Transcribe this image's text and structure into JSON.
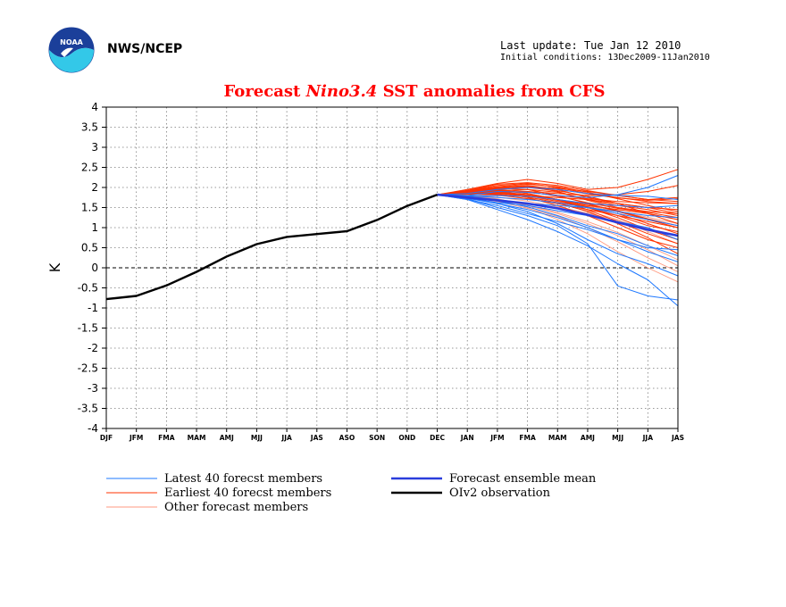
{
  "header": {
    "org": "NWS/NCEP",
    "last_update": "Last update: Tue Jan 12 2010",
    "initial_conditions": "Initial conditions: 13Dec2009-11Jan2010",
    "logo": "noaa-logo"
  },
  "chart_data": {
    "type": "line",
    "title_parts": [
      "Forecast ",
      "Nino3.4",
      " SST anomalies from CFS"
    ],
    "ylabel": "K",
    "ylim": [
      -4,
      4
    ],
    "yticks": [
      "4",
      "3.5",
      "3",
      "2.5",
      "2",
      "1.5",
      "1",
      "0.5",
      "0",
      "-0.5",
      "-1",
      "-1.5",
      "-2",
      "-2.5",
      "-3",
      "-3.5",
      "-4"
    ],
    "categories": [
      "DJF",
      "JFM",
      "FMA",
      "MAM",
      "AMJ",
      "MJJ",
      "JJA",
      "JAS",
      "ASO",
      "SON",
      "OND",
      "DEC",
      "JAN",
      "JFM",
      "FMA",
      "MAM",
      "AMJ",
      "MJJ",
      "JJA",
      "JAS"
    ],
    "grid": true,
    "colors": {
      "latest": "#1e78ff",
      "earliest": "#ff3300",
      "other": "#ff9a80",
      "mean": "#2a3ddc",
      "obs": "#000000"
    },
    "observation": {
      "name": "OIv2 observation",
      "values": [
        -0.78,
        -0.7,
        -0.44,
        -0.1,
        0.28,
        0.59,
        0.77,
        0.84,
        0.91,
        1.19,
        1.54,
        1.82
      ]
    },
    "ensemble_mean": {
      "name": "Forecast ensemble mean",
      "values": [
        1.82,
        1.75,
        1.68,
        1.6,
        1.48,
        1.32,
        1.13,
        0.95,
        0.8
      ]
    },
    "members": {
      "latest": [
        [
          1.82,
          1.7,
          1.45,
          1.2,
          0.9,
          0.55,
          0.1,
          -0.3,
          -0.95
        ],
        [
          1.82,
          1.8,
          1.9,
          1.88,
          1.8,
          1.75,
          1.82,
          2.0,
          2.3
        ],
        [
          1.82,
          1.75,
          1.6,
          1.4,
          1.1,
          0.7,
          0.35,
          0.1,
          -0.2
        ],
        [
          1.82,
          1.72,
          1.5,
          1.3,
          1.05,
          0.6,
          -0.45,
          -0.7,
          -0.8
        ],
        [
          1.82,
          1.85,
          1.95,
          2.0,
          1.95,
          1.85,
          1.8,
          1.78,
          1.7
        ],
        [
          1.82,
          1.78,
          1.7,
          1.6,
          1.55,
          1.5,
          1.4,
          1.3,
          1.25
        ],
        [
          1.82,
          1.74,
          1.62,
          1.55,
          1.42,
          1.3,
          1.15,
          1.0,
          0.7
        ],
        [
          1.82,
          1.76,
          1.66,
          1.52,
          1.3,
          1.05,
          0.85,
          0.55,
          0.3
        ],
        [
          1.82,
          1.7,
          1.55,
          1.35,
          1.15,
          0.95,
          0.7,
          0.4,
          0.15
        ],
        [
          1.82,
          1.8,
          1.75,
          1.7,
          1.62,
          1.5,
          1.35,
          1.2,
          1.05
        ],
        [
          1.82,
          1.73,
          1.6,
          1.45,
          1.25,
          1.0,
          0.7,
          0.5,
          0.45
        ],
        [
          1.82,
          1.79,
          1.8,
          1.78,
          1.7,
          1.6,
          1.55,
          1.5,
          1.55
        ]
      ],
      "earliest": [
        [
          1.82,
          1.95,
          2.1,
          2.2,
          2.1,
          1.95,
          2.0,
          2.2,
          2.45
        ],
        [
          1.82,
          1.9,
          2.0,
          2.05,
          1.95,
          1.75,
          1.6,
          1.5,
          1.35
        ],
        [
          1.82,
          1.88,
          1.95,
          1.85,
          1.7,
          1.55,
          1.45,
          1.35,
          1.2
        ],
        [
          1.82,
          1.85,
          1.9,
          1.8,
          1.65,
          1.5,
          1.3,
          1.05,
          0.9
        ],
        [
          1.82,
          1.87,
          1.92,
          1.95,
          1.88,
          1.7,
          1.55,
          1.45,
          1.3
        ],
        [
          1.82,
          1.9,
          1.98,
          1.95,
          1.8,
          1.6,
          1.4,
          1.2,
          1.0
        ],
        [
          1.82,
          1.83,
          1.85,
          1.8,
          1.75,
          1.7,
          1.6,
          1.5,
          1.45
        ],
        [
          1.82,
          1.92,
          2.05,
          2.1,
          2.0,
          1.85,
          1.75,
          1.65,
          1.6
        ],
        [
          1.82,
          1.86,
          1.88,
          1.75,
          1.55,
          1.3,
          1.0,
          0.7,
          0.5
        ],
        [
          1.82,
          1.84,
          1.87,
          1.9,
          1.85,
          1.8,
          1.82,
          1.9,
          2.05
        ],
        [
          1.82,
          1.89,
          1.93,
          1.85,
          1.7,
          1.45,
          1.15,
          0.85,
          0.6
        ],
        [
          1.82,
          1.91,
          2.0,
          2.02,
          1.9,
          1.68,
          1.5,
          1.4,
          1.35
        ],
        [
          1.82,
          1.85,
          1.82,
          1.72,
          1.6,
          1.45,
          1.3,
          1.15,
          1.0
        ],
        [
          1.82,
          1.88,
          1.96,
          2.0,
          1.98,
          1.9,
          1.8,
          1.7,
          1.75
        ],
        [
          1.82,
          1.86,
          1.9,
          1.82,
          1.68,
          1.52,
          1.35,
          1.1,
          0.85
        ],
        [
          1.82,
          1.93,
          2.08,
          2.12,
          2.05,
          1.92,
          1.8,
          1.7,
          1.65
        ],
        [
          1.82,
          1.84,
          1.83,
          1.76,
          1.62,
          1.4,
          1.1,
          0.75,
          0.35
        ],
        [
          1.82,
          1.9,
          1.95,
          1.9,
          1.78,
          1.62,
          1.48,
          1.38,
          1.25
        ],
        [
          1.82,
          1.87,
          1.92,
          1.88,
          1.8,
          1.72,
          1.65,
          1.62,
          1.6
        ],
        [
          1.82,
          1.89,
          1.97,
          2.0,
          1.92,
          1.78,
          1.6,
          1.35,
          1.1
        ],
        [
          1.82,
          1.85,
          1.86,
          1.8,
          1.7,
          1.58,
          1.42,
          1.22,
          1.05
        ],
        [
          1.82,
          1.92,
          2.02,
          2.08,
          2.02,
          1.88,
          1.72,
          1.55,
          1.4
        ],
        [
          1.82,
          1.86,
          1.88,
          1.82,
          1.7,
          1.5,
          1.25,
          0.95,
          0.7
        ],
        [
          1.82,
          1.9,
          1.99,
          2.03,
          1.96,
          1.84,
          1.74,
          1.68,
          1.72
        ]
      ],
      "other": [
        [
          1.82,
          1.8,
          1.72,
          1.55,
          1.35,
          1.1,
          0.8,
          0.45,
          0.05
        ],
        [
          1.82,
          1.78,
          1.7,
          1.5,
          1.2,
          0.85,
          0.4,
          0.0,
          -0.35
        ],
        [
          1.82,
          1.83,
          1.8,
          1.72,
          1.6,
          1.42,
          1.2,
          0.9,
          0.6
        ],
        [
          1.82,
          1.76,
          1.65,
          1.48,
          1.28,
          1.0,
          0.65,
          0.25,
          -0.1
        ],
        [
          1.82,
          1.85,
          1.85,
          1.8,
          1.7,
          1.6,
          1.5,
          1.35,
          1.2
        ],
        [
          1.82,
          1.81,
          1.76,
          1.66,
          1.52,
          1.36,
          1.18,
          0.98,
          0.78
        ],
        [
          1.82,
          1.79,
          1.7,
          1.56,
          1.38,
          1.15,
          0.88,
          0.55,
          0.2
        ],
        [
          1.82,
          1.84,
          1.82,
          1.76,
          1.66,
          1.54,
          1.4,
          1.26,
          1.1
        ]
      ]
    }
  },
  "legend": {
    "latest": "Latest 40 forecst members",
    "earliest": "Earliest 40 forecst members",
    "other": "Other forecast members",
    "mean": "Forecast ensemble mean",
    "obs": "OIv2 observation"
  }
}
